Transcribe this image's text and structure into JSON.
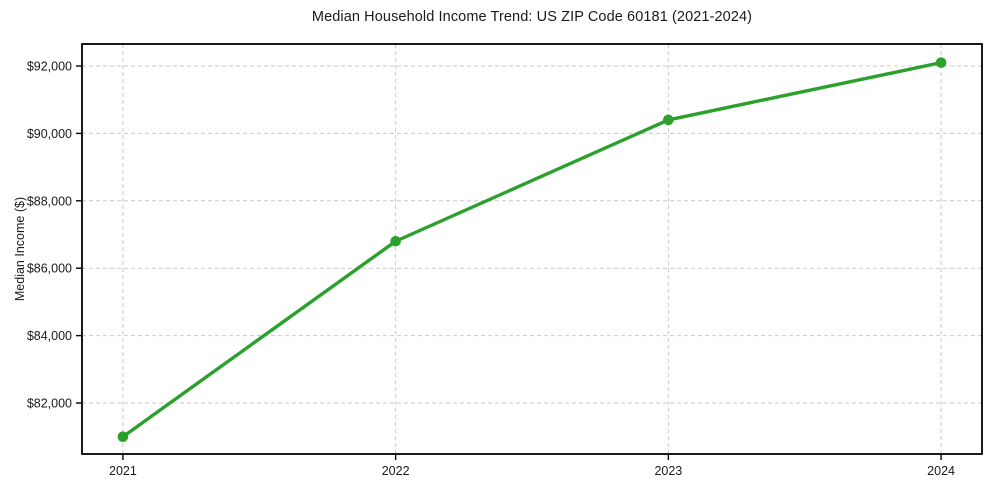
{
  "chart_data": {
    "type": "line",
    "title": "Median Household Income Trend: US ZIP Code 60181 (2021-2024)",
    "xlabel": "",
    "ylabel": "Median Income ($)",
    "categories": [
      "2021",
      "2022",
      "2023",
      "2024"
    ],
    "x": [
      2021,
      2022,
      2023,
      2024
    ],
    "series": [
      {
        "name": "Median household income",
        "values": [
          81000,
          86800,
          90400,
          92100
        ]
      }
    ],
    "xlim": [
      2020.85,
      2024.15
    ],
    "ylim": [
      80487,
      92653
    ],
    "ytick_values": [
      82000,
      84000,
      86000,
      88000,
      90000,
      92000
    ],
    "ytick_labels": [
      "$82,000",
      "$84,000",
      "$86,000",
      "$88,000",
      "$90,000",
      "$92,000"
    ],
    "grid": "dashed, horizontal and vertical",
    "legend_position": "none",
    "colors": {
      "line": "#2ca02c",
      "marker": "#2ca02c",
      "grid": "#c9c9c9",
      "spine": "#000000",
      "text": "#1a1a1a",
      "background": "#ffffff"
    }
  }
}
